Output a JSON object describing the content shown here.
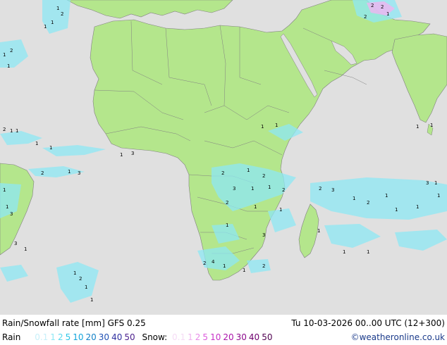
{
  "title": "Rain/Snowfall rate [mm] GFS 0.25",
  "valid_time": "Tu 10-03-2026 00..00 UTC (12+300)",
  "credit": "©weatheronline.co.uk",
  "legend": {
    "rain_label": "Rain",
    "rain_values": [
      {
        "text": "0.1",
        "color": "#c8f0fa"
      },
      {
        "text": "1",
        "color": "#8ee8f5"
      },
      {
        "text": "2",
        "color": "#5ad8ef"
      },
      {
        "text": "5",
        "color": "#2cc4e6"
      },
      {
        "text": "10",
        "color": "#14a6dc"
      },
      {
        "text": "20",
        "color": "#1482c8"
      },
      {
        "text": "30",
        "color": "#2050b4"
      },
      {
        "text": "40",
        "color": "#3030a0"
      },
      {
        "text": "50",
        "color": "#4a1e8c"
      }
    ],
    "snow_label": "Snow:",
    "snow_values": [
      {
        "text": "0.1",
        "color": "#f6dcf6"
      },
      {
        "text": "1",
        "color": "#f0b4f0"
      },
      {
        "text": "2",
        "color": "#e88ce8"
      },
      {
        "text": "5",
        "color": "#dc5cdc"
      },
      {
        "text": "10",
        "color": "#c832c8"
      },
      {
        "text": "20",
        "color": "#aa14aa"
      },
      {
        "text": "30",
        "color": "#8c0a8c"
      },
      {
        "text": "40",
        "color": "#6e006e"
      },
      {
        "text": "50",
        "color": "#500050"
      }
    ]
  },
  "colors": {
    "ocean": "#e0e0e0",
    "land": "#b4e68c",
    "border": "#808080",
    "rain": "#8ee8f5"
  }
}
